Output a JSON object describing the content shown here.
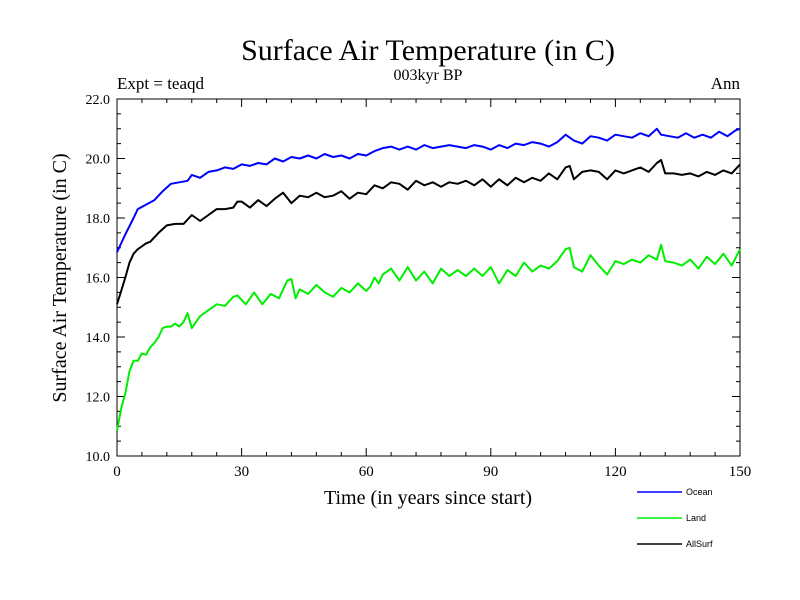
{
  "chart_data": {
    "type": "line",
    "title": "Surface Air Temperature (in C)",
    "subtitle": "003kyr BP",
    "left_label": "Expt = teaqd",
    "right_label": "Ann",
    "xlabel": "Time (in years since start)",
    "ylabel": "Surface Air Temperature (in C)",
    "xlim": [
      0,
      150
    ],
    "ylim": [
      10,
      22
    ],
    "xticks": [
      0,
      30,
      60,
      90,
      120,
      150
    ],
    "yticks": [
      10,
      12,
      14,
      16,
      18,
      20,
      22
    ],
    "ytick_labels": [
      "10.0",
      "12.0",
      "14.0",
      "16.0",
      "18.0",
      "20.0",
      "22.0"
    ],
    "legend_position": "bottom-right",
    "series": [
      {
        "name": "Ocean",
        "color": "#0000ff",
        "x": [
          0,
          2,
          4,
          5,
          7,
          9,
          11,
          13,
          15,
          17,
          18,
          20,
          22,
          24,
          26,
          28,
          30,
          32,
          34,
          36,
          38,
          40,
          42,
          44,
          46,
          48,
          50,
          52,
          54,
          56,
          58,
          60,
          62,
          64,
          66,
          68,
          70,
          72,
          74,
          76,
          78,
          80,
          82,
          84,
          86,
          88,
          90,
          92,
          94,
          96,
          98,
          100,
          102,
          104,
          106,
          108,
          110,
          112,
          114,
          116,
          118,
          120,
          122,
          124,
          126,
          128,
          130,
          131,
          133,
          135,
          137,
          139,
          141,
          143,
          145,
          147,
          149,
          150
        ],
        "y": [
          16.85,
          17.45,
          18.0,
          18.3,
          18.45,
          18.6,
          18.9,
          19.15,
          19.2,
          19.25,
          19.45,
          19.35,
          19.55,
          19.6,
          19.7,
          19.65,
          19.8,
          19.75,
          19.85,
          19.8,
          20.0,
          19.9,
          20.05,
          20.0,
          20.1,
          20.0,
          20.15,
          20.05,
          20.1,
          20.0,
          20.15,
          20.1,
          20.25,
          20.35,
          20.4,
          20.3,
          20.4,
          20.3,
          20.45,
          20.35,
          20.4,
          20.45,
          20.4,
          20.35,
          20.45,
          20.4,
          20.3,
          20.45,
          20.35,
          20.5,
          20.45,
          20.55,
          20.5,
          20.4,
          20.55,
          20.8,
          20.6,
          20.5,
          20.75,
          20.7,
          20.6,
          20.8,
          20.75,
          20.7,
          20.85,
          20.75,
          21.0,
          20.8,
          20.75,
          20.7,
          20.85,
          20.7,
          20.8,
          20.7,
          20.9,
          20.75,
          20.95,
          21.0
        ]
      },
      {
        "name": "Land",
        "color": "#00ee00",
        "x": [
          0,
          1,
          2,
          3,
          4,
          5,
          6,
          7,
          8,
          9,
          10,
          11,
          12,
          13,
          14,
          15,
          16,
          17,
          18,
          19,
          20,
          22,
          24,
          26,
          28,
          29,
          31,
          33,
          35,
          37,
          39,
          41,
          42,
          43,
          44,
          46,
          48,
          50,
          52,
          54,
          56,
          58,
          60,
          61,
          62,
          63,
          64,
          66,
          68,
          70,
          72,
          74,
          76,
          78,
          80,
          82,
          84,
          86,
          88,
          90,
          92,
          94,
          96,
          98,
          100,
          102,
          104,
          106,
          108,
          109,
          110,
          112,
          114,
          116,
          118,
          120,
          122,
          124,
          126,
          128,
          130,
          131,
          132,
          134,
          136,
          138,
          140,
          142,
          144,
          146,
          148,
          150
        ],
        "y": [
          10.85,
          11.6,
          12.1,
          12.85,
          13.2,
          13.2,
          13.45,
          13.4,
          13.65,
          13.8,
          14.0,
          14.3,
          14.35,
          14.35,
          14.45,
          14.35,
          14.5,
          14.8,
          14.3,
          14.5,
          14.7,
          14.9,
          15.1,
          15.05,
          15.35,
          15.4,
          15.1,
          15.5,
          15.1,
          15.45,
          15.3,
          15.9,
          15.95,
          15.3,
          15.6,
          15.45,
          15.75,
          15.5,
          15.35,
          15.65,
          15.5,
          15.8,
          15.55,
          15.7,
          16.0,
          15.8,
          16.1,
          16.3,
          15.9,
          16.35,
          15.9,
          16.2,
          15.8,
          16.3,
          16.05,
          16.25,
          16.05,
          16.3,
          16.05,
          16.35,
          15.8,
          16.25,
          16.05,
          16.5,
          16.2,
          16.4,
          16.3,
          16.55,
          16.95,
          17.0,
          16.35,
          16.2,
          16.75,
          16.4,
          16.1,
          16.55,
          16.45,
          16.6,
          16.5,
          16.75,
          16.6,
          17.1,
          16.55,
          16.5,
          16.4,
          16.6,
          16.3,
          16.7,
          16.45,
          16.8,
          16.4,
          16.95
        ]
      },
      {
        "name": "AllSurf",
        "color": "#000000",
        "x": [
          0,
          1,
          2,
          3,
          4,
          5,
          6,
          7,
          8,
          9,
          10,
          12,
          14,
          16,
          18,
          20,
          22,
          24,
          26,
          28,
          29,
          30,
          32,
          34,
          36,
          38,
          40,
          42,
          44,
          46,
          48,
          50,
          52,
          54,
          56,
          58,
          60,
          62,
          64,
          66,
          68,
          70,
          72,
          74,
          76,
          78,
          80,
          82,
          84,
          86,
          88,
          90,
          92,
          94,
          96,
          98,
          100,
          102,
          104,
          106,
          108,
          109,
          110,
          112,
          114,
          116,
          118,
          120,
          122,
          124,
          126,
          128,
          130,
          131,
          132,
          134,
          136,
          138,
          140,
          142,
          144,
          146,
          148,
          150
        ],
        "y": [
          15.1,
          15.55,
          16.0,
          16.5,
          16.8,
          16.95,
          17.05,
          17.15,
          17.2,
          17.35,
          17.5,
          17.75,
          17.8,
          17.8,
          18.1,
          17.9,
          18.1,
          18.3,
          18.3,
          18.35,
          18.55,
          18.55,
          18.35,
          18.6,
          18.4,
          18.65,
          18.85,
          18.5,
          18.75,
          18.7,
          18.85,
          18.7,
          18.75,
          18.9,
          18.65,
          18.85,
          18.8,
          19.1,
          19.0,
          19.2,
          19.15,
          18.95,
          19.25,
          19.1,
          19.2,
          19.05,
          19.2,
          19.15,
          19.25,
          19.1,
          19.3,
          19.05,
          19.3,
          19.1,
          19.35,
          19.2,
          19.35,
          19.25,
          19.5,
          19.3,
          19.7,
          19.75,
          19.3,
          19.55,
          19.6,
          19.55,
          19.3,
          19.6,
          19.5,
          19.6,
          19.7,
          19.55,
          19.85,
          19.95,
          19.5,
          19.5,
          19.45,
          19.5,
          19.4,
          19.55,
          19.45,
          19.6,
          19.5,
          19.8
        ]
      }
    ]
  }
}
